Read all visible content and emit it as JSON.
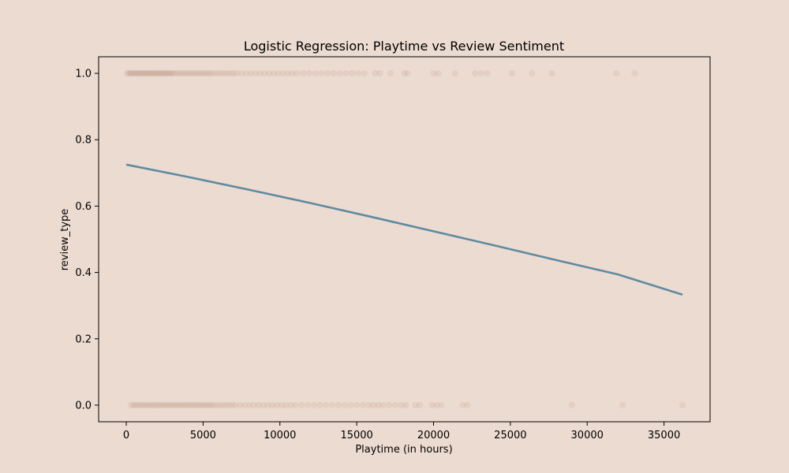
{
  "chart_data": {
    "type": "scatter",
    "title": "Logistic Regression: Playtime vs Review Sentiment",
    "xlabel": "Playtime (in hours)",
    "ylabel": "review_type",
    "xlim": [
      -1800,
      38000
    ],
    "ylim": [
      -0.05,
      1.05
    ],
    "xticks": [
      0,
      5000,
      10000,
      15000,
      20000,
      25000,
      30000,
      35000
    ],
    "xtick_labels": [
      "0",
      "5000",
      "10000",
      "15000",
      "20000",
      "25000",
      "30000",
      "35000"
    ],
    "yticks": [
      0.0,
      0.2,
      0.4,
      0.6,
      0.8,
      1.0
    ],
    "ytick_labels": [
      "0.0",
      "0.2",
      "0.4",
      "0.6",
      "0.8",
      "1.0"
    ],
    "grid": false,
    "legend": "none",
    "colors": {
      "background": "#ecdbd0",
      "points": "#9c6b55",
      "curve": "#5f8ba1",
      "axes": "#000000"
    },
    "series": [
      {
        "type": "scatter",
        "x": [
          50,
          150,
          250,
          350,
          450,
          550,
          650,
          750,
          850,
          950,
          1050,
          1150,
          1250,
          1350,
          1450,
          1550,
          1650,
          1750,
          1850,
          1950,
          2050,
          2150,
          2250,
          2350,
          2450,
          2550,
          2650,
          2750,
          2850,
          2950,
          3050,
          3200,
          3350,
          3500,
          3650,
          3800,
          3950,
          4100,
          4250,
          4400,
          4550,
          4700,
          4850,
          5000,
          5150,
          5300,
          5450,
          5600,
          5800,
          6000,
          6200,
          6400,
          6600,
          6800,
          7000,
          7200,
          7500,
          7800,
          8100,
          8400,
          8700,
          9000,
          9300,
          9600,
          9900,
          10200,
          10500,
          10800,
          11100,
          11500,
          11900,
          12300,
          12700,
          13100,
          13500,
          13900,
          14300,
          14700,
          15100,
          15500,
          16200,
          16500,
          17200,
          18100,
          18300,
          20000,
          20300,
          21400,
          22700,
          23100,
          23500,
          25100,
          26400,
          27700,
          31900,
          33100
        ],
        "y": [
          1,
          1,
          1,
          1,
          1,
          1,
          1,
          1,
          1,
          1,
          1,
          1,
          1,
          1,
          1,
          1,
          1,
          1,
          1,
          1,
          1,
          1,
          1,
          1,
          1,
          1,
          1,
          1,
          1,
          1,
          1,
          1,
          1,
          1,
          1,
          1,
          1,
          1,
          1,
          1,
          1,
          1,
          1,
          1,
          1,
          1,
          1,
          1,
          1,
          1,
          1,
          1,
          1,
          1,
          1,
          1,
          1,
          1,
          1,
          1,
          1,
          1,
          1,
          1,
          1,
          1,
          1,
          1,
          1,
          1,
          1,
          1,
          1,
          1,
          1,
          1,
          1,
          1,
          1,
          1,
          1,
          1,
          1,
          1,
          1,
          1,
          1,
          1,
          1,
          1,
          1,
          1,
          1,
          1,
          1,
          1
        ]
      },
      {
        "type": "scatter",
        "x": [
          300,
          450,
          600,
          750,
          900,
          1050,
          1200,
          1350,
          1500,
          1650,
          1800,
          1950,
          2100,
          2250,
          2400,
          2550,
          2700,
          2850,
          3000,
          3150,
          3300,
          3450,
          3600,
          3750,
          3900,
          4050,
          4200,
          4350,
          4500,
          4650,
          4800,
          4950,
          5100,
          5250,
          5400,
          5550,
          5700,
          5900,
          6100,
          6300,
          6500,
          6700,
          6900,
          7100,
          7400,
          7700,
          8000,
          8300,
          8600,
          8900,
          9200,
          9500,
          9800,
          10100,
          10400,
          10700,
          11000,
          11400,
          11800,
          12200,
          12600,
          13000,
          13400,
          13800,
          14200,
          14600,
          15000,
          15400,
          15800,
          16100,
          16400,
          16700,
          17100,
          17500,
          17900,
          18200,
          18800,
          19100,
          19900,
          20200,
          20500,
          21900,
          22200,
          29000,
          32300,
          36200
        ],
        "y": [
          0,
          0,
          0,
          0,
          0,
          0,
          0,
          0,
          0,
          0,
          0,
          0,
          0,
          0,
          0,
          0,
          0,
          0,
          0,
          0,
          0,
          0,
          0,
          0,
          0,
          0,
          0,
          0,
          0,
          0,
          0,
          0,
          0,
          0,
          0,
          0,
          0,
          0,
          0,
          0,
          0,
          0,
          0,
          0,
          0,
          0,
          0,
          0,
          0,
          0,
          0,
          0,
          0,
          0,
          0,
          0,
          0,
          0,
          0,
          0,
          0,
          0,
          0,
          0,
          0,
          0,
          0,
          0,
          0,
          0,
          0,
          0,
          0,
          0,
          0,
          0,
          0,
          0,
          0,
          0,
          0,
          0,
          0,
          0,
          0,
          0
        ]
      },
      {
        "type": "line",
        "x": [
          0,
          4000,
          8000,
          12000,
          16000,
          20000,
          24000,
          28000,
          32000,
          36200
        ],
        "y": [
          0.725,
          0.688,
          0.649,
          0.609,
          0.567,
          0.524,
          0.481,
          0.437,
          0.394,
          0.333
        ]
      }
    ]
  }
}
